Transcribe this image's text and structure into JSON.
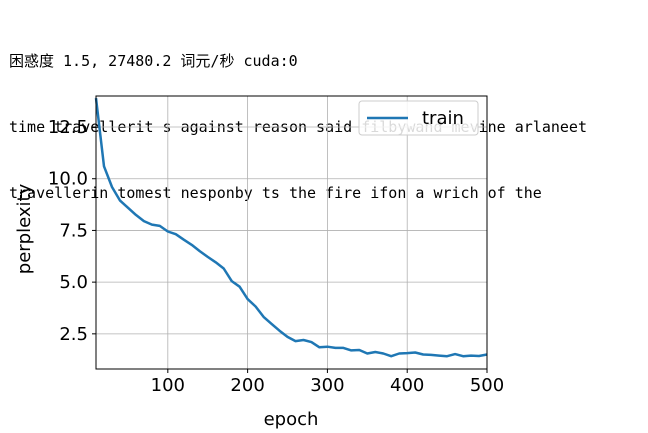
{
  "output": {
    "status_line": "困惑度 1.5, 27480.2 词元/秒 cuda:0",
    "sample_lines": [
      "time travellerit s against reason said filbywand mevine arlaneet",
      "travellerin tomest nesponby ts the fire ifon a wrich of the"
    ]
  },
  "chart_data": {
    "type": "line",
    "title": "",
    "xlabel": "epoch",
    "ylabel": "perplexity",
    "xlim": [
      10,
      500
    ],
    "ylim": [
      0.8,
      14.0
    ],
    "xticks": [
      100,
      200,
      300,
      400,
      500
    ],
    "yticks": [
      2.5,
      5.0,
      7.5,
      10.0,
      12.5
    ],
    "xtick_labels": [
      "100",
      "200",
      "300",
      "400",
      "500"
    ],
    "ytick_labels": [
      "2.5",
      "5.0",
      "7.5",
      "10.0",
      "12.5"
    ],
    "grid": true,
    "legend": {
      "position": "top-right",
      "entries": [
        "train"
      ]
    },
    "series": [
      {
        "name": "train",
        "color": "#1f77b4",
        "x": [
          10,
          20,
          30,
          40,
          50,
          60,
          70,
          80,
          90,
          100,
          110,
          120,
          130,
          140,
          150,
          160,
          170,
          180,
          190,
          200,
          210,
          220,
          230,
          240,
          250,
          260,
          270,
          280,
          290,
          300,
          310,
          320,
          330,
          340,
          350,
          360,
          370,
          380,
          390,
          400,
          410,
          420,
          430,
          440,
          450,
          460,
          470,
          480,
          490,
          500
        ],
        "y": [
          13.9,
          10.6,
          9.6,
          8.95,
          8.6,
          8.25,
          7.95,
          7.78,
          7.72,
          7.45,
          7.32,
          7.05,
          6.8,
          6.5,
          6.22,
          5.96,
          5.66,
          5.05,
          4.78,
          4.18,
          3.82,
          3.32,
          2.98,
          2.65,
          2.35,
          2.15,
          2.2,
          2.1,
          1.85,
          1.88,
          1.82,
          1.82,
          1.7,
          1.72,
          1.55,
          1.62,
          1.55,
          1.42,
          1.55,
          1.57,
          1.6,
          1.5,
          1.48,
          1.45,
          1.42,
          1.52,
          1.42,
          1.45,
          1.43,
          1.5
        ]
      }
    ]
  }
}
